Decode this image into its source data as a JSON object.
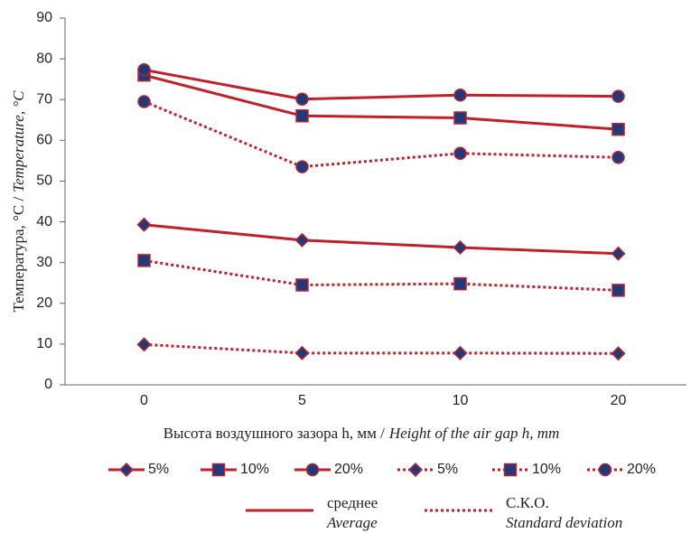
{
  "chart_data": {
    "type": "line",
    "x_label": "Высота воздушного зазора h, мм /",
    "x_label_en": "Height of the air gap h, mm",
    "y_label": "Температура, °C /",
    "y_label_en": "Temperature, °C",
    "categories": [
      "0",
      "5",
      "10",
      "20"
    ],
    "ylim": [
      0,
      90
    ],
    "yticks": [
      0,
      10,
      20,
      30,
      40,
      50,
      60,
      70,
      80,
      90
    ],
    "series": [
      {
        "name": "5%",
        "color": "#c0202a",
        "line": "solid",
        "marker": "diamond",
        "values": [
          39.3,
          35.5,
          33.7,
          32.2
        ]
      },
      {
        "name": "10%",
        "color": "#c0202a",
        "line": "solid",
        "marker": "square",
        "values": [
          76,
          66,
          65.5,
          62.7
        ]
      },
      {
        "name": "20%",
        "color": "#c0202a",
        "line": "solid",
        "marker": "circle",
        "values": [
          77.3,
          70.1,
          71.1,
          70.8
        ]
      },
      {
        "name": "5%",
        "color": "#c0202a",
        "line": "dotted",
        "marker": "diamond",
        "values": [
          9.9,
          7.8,
          7.8,
          7.7
        ]
      },
      {
        "name": "10%",
        "color": "#c0202a",
        "line": "dotted",
        "marker": "square",
        "values": [
          30.5,
          24.5,
          24.8,
          23.2
        ]
      },
      {
        "name": "20%",
        "color": "#c0202a",
        "line": "dotted",
        "marker": "circle",
        "values": [
          69.5,
          53.5,
          56.8,
          55.8
        ]
      }
    ],
    "marker_color": "#1f3a7a",
    "style_legend": [
      {
        "line": "solid",
        "name": "среднее",
        "name_en": "Average"
      },
      {
        "line": "dotted",
        "name": "С.К.О.",
        "name_en": "Standard deviation"
      }
    ]
  }
}
